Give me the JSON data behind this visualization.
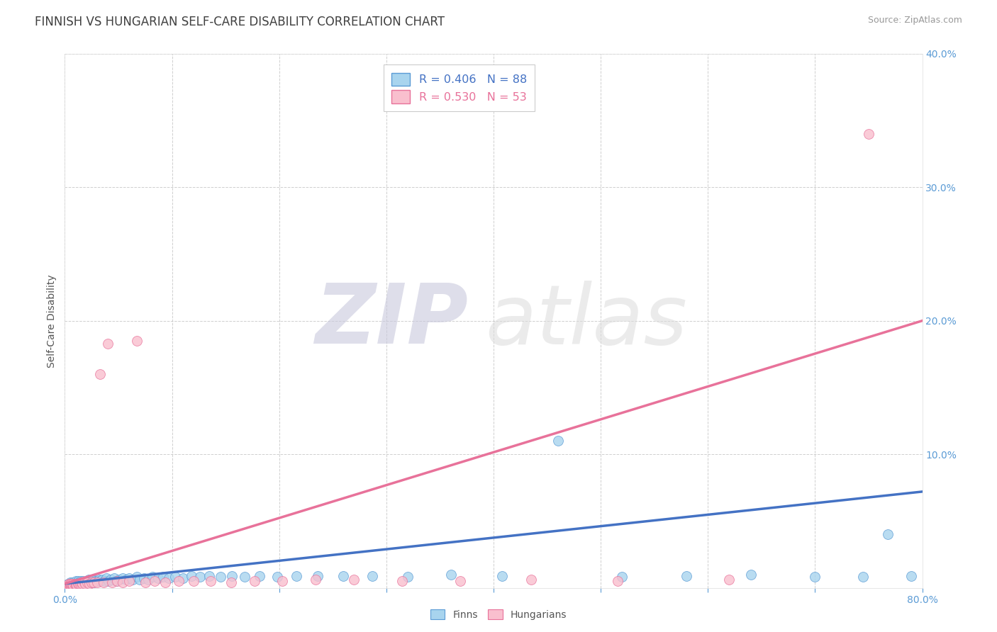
{
  "title": "FINNISH VS HUNGARIAN SELF-CARE DISABILITY CORRELATION CHART",
  "source": "Source: ZipAtlas.com",
  "ylabel": "Self-Care Disability",
  "xlim": [
    0.0,
    0.8
  ],
  "ylim": [
    0.0,
    0.4
  ],
  "xtick_vals": [
    0.0,
    0.1,
    0.2,
    0.3,
    0.4,
    0.5,
    0.6,
    0.7,
    0.8
  ],
  "xticklabels": [
    "0.0%",
    "",
    "",
    "",
    "",
    "",
    "",
    "",
    "80.0%"
  ],
  "ytick_vals": [
    0.0,
    0.1,
    0.2,
    0.3,
    0.4
  ],
  "yticklabels_right": [
    "0.0%",
    "10.0%",
    "20.0%",
    "30.0%",
    "40.0%"
  ],
  "finns_R": 0.406,
  "finns_N": 88,
  "hungarians_R": 0.53,
  "hungarians_N": 53,
  "finns_fill": "#A8D4EE",
  "finns_edge": "#5B9BD5",
  "hung_fill": "#F9BFCE",
  "hung_edge": "#E8729A",
  "finns_line_color": "#4472C4",
  "hung_line_color": "#E8729A",
  "title_color": "#404040",
  "axis_tick_color": "#5B9BD5",
  "grid_color": "#BBBBBB",
  "watermark_zip_color": "#C8C8DC",
  "watermark_atlas_color": "#DCDCDC",
  "source_color": "#999999",
  "ylabel_color": "#555555",
  "legend_label1_color": "#4472C4",
  "legend_label2_color": "#E8729A",
  "legend_border_color": "#CCCCCC",
  "bottom_legend_color": "#555555",
  "finns_x": [
    0.001,
    0.002,
    0.003,
    0.003,
    0.004,
    0.004,
    0.005,
    0.005,
    0.005,
    0.006,
    0.006,
    0.007,
    0.007,
    0.008,
    0.008,
    0.009,
    0.009,
    0.01,
    0.01,
    0.011,
    0.012,
    0.012,
    0.013,
    0.013,
    0.014,
    0.015,
    0.015,
    0.016,
    0.017,
    0.018,
    0.019,
    0.02,
    0.021,
    0.022,
    0.023,
    0.024,
    0.025,
    0.026,
    0.027,
    0.028,
    0.03,
    0.032,
    0.033,
    0.035,
    0.037,
    0.039,
    0.041,
    0.043,
    0.046,
    0.048,
    0.051,
    0.054,
    0.057,
    0.06,
    0.063,
    0.067,
    0.07,
    0.074,
    0.078,
    0.082,
    0.087,
    0.092,
    0.097,
    0.103,
    0.11,
    0.118,
    0.126,
    0.135,
    0.145,
    0.156,
    0.168,
    0.182,
    0.198,
    0.216,
    0.236,
    0.26,
    0.287,
    0.32,
    0.36,
    0.408,
    0.46,
    0.52,
    0.58,
    0.64,
    0.7,
    0.745,
    0.768,
    0.79
  ],
  "finns_y": [
    0.001,
    0.002,
    0.001,
    0.003,
    0.002,
    0.001,
    0.003,
    0.002,
    0.004,
    0.002,
    0.003,
    0.002,
    0.004,
    0.003,
    0.002,
    0.004,
    0.003,
    0.005,
    0.002,
    0.004,
    0.003,
    0.005,
    0.003,
    0.004,
    0.003,
    0.005,
    0.004,
    0.003,
    0.005,
    0.004,
    0.003,
    0.005,
    0.004,
    0.006,
    0.004,
    0.005,
    0.004,
    0.006,
    0.004,
    0.005,
    0.005,
    0.006,
    0.005,
    0.006,
    0.005,
    0.007,
    0.005,
    0.006,
    0.007,
    0.005,
    0.006,
    0.007,
    0.006,
    0.007,
    0.006,
    0.008,
    0.006,
    0.007,
    0.006,
    0.008,
    0.007,
    0.008,
    0.007,
    0.008,
    0.007,
    0.009,
    0.008,
    0.009,
    0.008,
    0.009,
    0.008,
    0.009,
    0.008,
    0.009,
    0.009,
    0.009,
    0.009,
    0.008,
    0.01,
    0.009,
    0.11,
    0.008,
    0.009,
    0.01,
    0.008,
    0.008,
    0.04,
    0.009
  ],
  "hungarians_x": [
    0.001,
    0.002,
    0.003,
    0.004,
    0.004,
    0.005,
    0.005,
    0.006,
    0.006,
    0.007,
    0.007,
    0.008,
    0.009,
    0.01,
    0.01,
    0.011,
    0.012,
    0.013,
    0.014,
    0.015,
    0.016,
    0.018,
    0.019,
    0.021,
    0.023,
    0.025,
    0.027,
    0.03,
    0.033,
    0.036,
    0.04,
    0.044,
    0.049,
    0.054,
    0.06,
    0.067,
    0.075,
    0.084,
    0.094,
    0.106,
    0.12,
    0.136,
    0.155,
    0.177,
    0.203,
    0.234,
    0.27,
    0.315,
    0.369,
    0.435,
    0.516,
    0.62,
    0.75
  ],
  "hungarians_y": [
    0.001,
    0.002,
    0.001,
    0.002,
    0.003,
    0.002,
    0.003,
    0.002,
    0.003,
    0.002,
    0.003,
    0.002,
    0.003,
    0.002,
    0.003,
    0.002,
    0.003,
    0.003,
    0.003,
    0.004,
    0.003,
    0.004,
    0.003,
    0.004,
    0.003,
    0.004,
    0.004,
    0.004,
    0.16,
    0.004,
    0.183,
    0.004,
    0.005,
    0.004,
    0.005,
    0.185,
    0.004,
    0.005,
    0.004,
    0.005,
    0.005,
    0.005,
    0.004,
    0.005,
    0.005,
    0.006,
    0.006,
    0.005,
    0.005,
    0.006,
    0.005,
    0.006,
    0.34
  ]
}
